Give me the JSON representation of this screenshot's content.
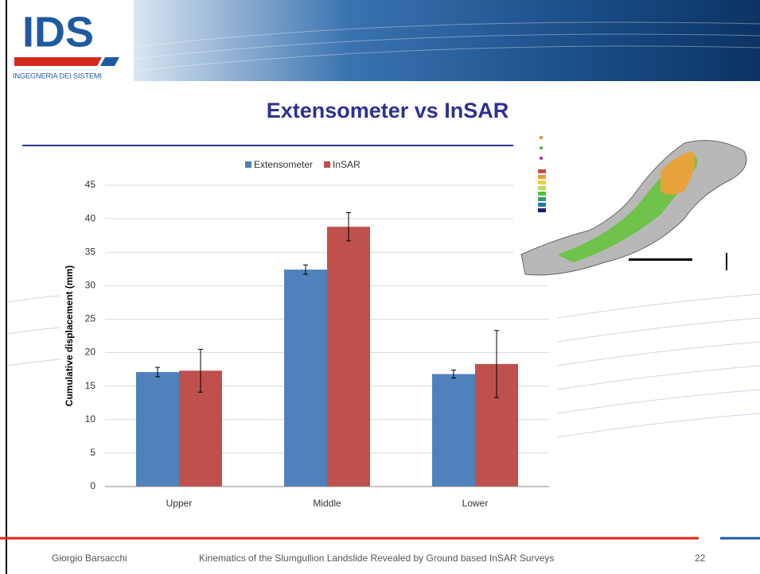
{
  "logo": {
    "name": "IDS",
    "subtitle": "INGEGNERIA DEI SISTEMI"
  },
  "footer": {
    "author": "Giorgio Barsacchi",
    "talk": "Kinematics of the Slumgullion Landslide Revealed by Ground based InSAR Surveys",
    "page": "22"
  },
  "chart_data": {
    "type": "bar",
    "title": "Extensometer vs InSAR",
    "y_label": "Cumulative displacement (mm)",
    "categories": [
      "Upper",
      "Middle",
      "Lower"
    ],
    "series": [
      {
        "name": "Extensometer",
        "color": "#4f81bd",
        "values": [
          17.1,
          32.4,
          16.8
        ],
        "errors": [
          0.7,
          0.7,
          0.6
        ]
      },
      {
        "name": "InSAR",
        "color": "#c0504d",
        "values": [
          17.3,
          38.8,
          18.3
        ],
        "errors": [
          3.2,
          2.1,
          5.0
        ]
      }
    ],
    "ylim": [
      0,
      45
    ],
    "yticks": [
      0,
      5,
      10,
      15,
      20,
      25,
      30,
      35,
      40,
      45
    ],
    "grid": true,
    "legend": "top"
  }
}
